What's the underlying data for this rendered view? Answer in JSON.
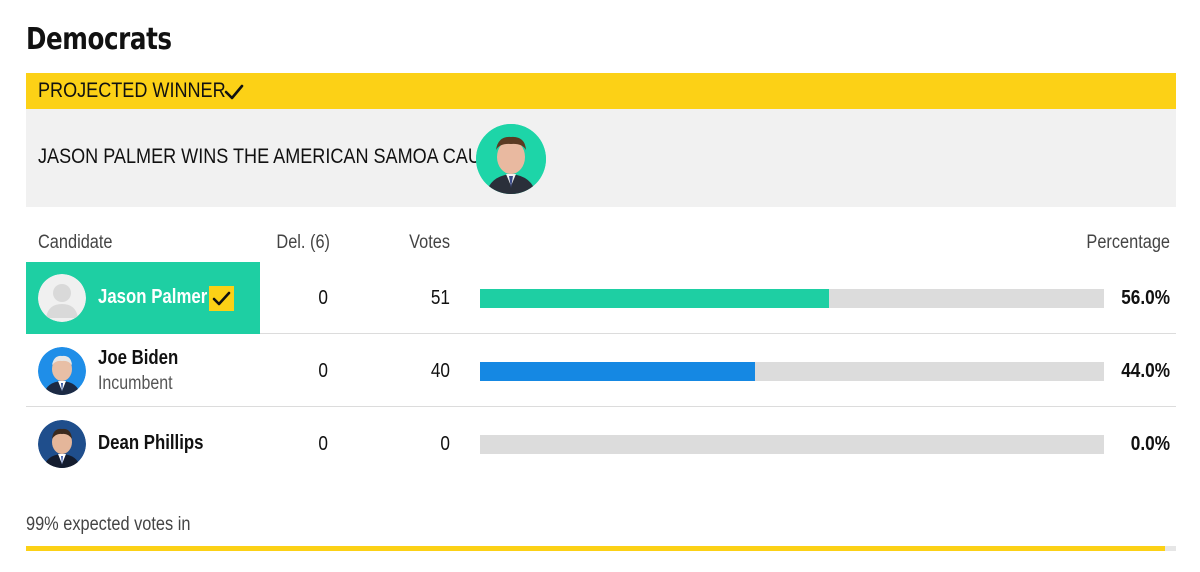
{
  "title": "Democrats",
  "banner": {
    "label": "PROJECTED WINNER",
    "icon": "check-icon",
    "color": "#fcd116"
  },
  "winner": {
    "headline": "JASON PALMER WINS THE AMERICAN SAMOA CAUCUS",
    "photo_icon": "candidate-photo-icon"
  },
  "table": {
    "headers": {
      "candidate": "Candidate",
      "delegates": "Del. (6)",
      "votes": "Votes",
      "percentage": "Percentage"
    },
    "rows": [
      {
        "name": "Jason Palmer",
        "sub": "",
        "delegates": "0",
        "votes": "51",
        "percentage": "56.0%",
        "share": 0.56,
        "bar_color": "#1ecfa3",
        "winner": true
      },
      {
        "name": "Joe Biden",
        "sub": "Incumbent",
        "delegates": "0",
        "votes": "40",
        "percentage": "44.0%",
        "share": 0.44,
        "bar_color": "#1588e3",
        "winner": false
      },
      {
        "name": "Dean Phillips",
        "sub": "",
        "delegates": "0",
        "votes": "0",
        "percentage": "0.0%",
        "share": 0.0,
        "bar_color": "#1588e3",
        "winner": false
      }
    ]
  },
  "footer": {
    "text": "99% expected votes in",
    "progress": 0.99
  }
}
